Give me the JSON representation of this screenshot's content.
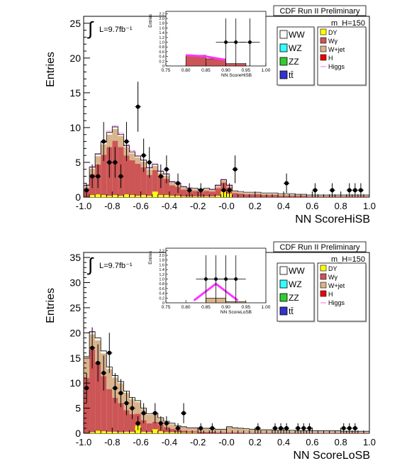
{
  "chart_data": [
    {
      "type": "bar",
      "title": "CDF Run II Preliminary",
      "mass_label": "m_H=150",
      "lumi": "L=9.7fb⁻¹",
      "xlabel": "NN ScoreHiSB",
      "ylabel": "Entries",
      "xlim": [
        -1.0,
        1.0
      ],
      "ylim": [
        0,
        26
      ],
      "xticks": [
        "-1.0",
        "-0.8",
        "-0.6",
        "-0.4",
        "-0.2",
        "-0.0",
        "0.2",
        "0.4",
        "0.6",
        "0.8",
        "1.0"
      ],
      "yticks": [
        "0",
        "5",
        "10",
        "15",
        "20",
        "25"
      ],
      "legend_left": [
        {
          "label": "WW",
          "color": "#ffffff"
        },
        {
          "label": "WZ",
          "color": "#33ffff"
        },
        {
          "label": "ZZ",
          "color": "#33cc33"
        },
        {
          "label": "tt̄",
          "color": "#3333cc"
        }
      ],
      "legend_right": [
        {
          "label": "DY",
          "color": "#ffff00"
        },
        {
          "label": "Wγ",
          "color": "#cc5555"
        },
        {
          "label": "W+jet",
          "color": "#d9b38c"
        },
        {
          "label": "H",
          "color": "#ee0000"
        },
        {
          "label": "Higgs",
          "color": "#ff66ff"
        }
      ],
      "bin_edges_start": -1.0,
      "bin_width": 0.04,
      "series": [
        {
          "name": "DY",
          "color": "#ffff00",
          "values": [
            0,
            0.3,
            0.4,
            0.3,
            0.2,
            0.3,
            0.2,
            0.4,
            0.3,
            0.2,
            0.3,
            0.2,
            0.8,
            0.3,
            0.3,
            0.2,
            0.2,
            0.1,
            0.1,
            0.1,
            0.1,
            0.1,
            0.1,
            0.2,
            0.8,
            0.5,
            0,
            0,
            0,
            0,
            0,
            0,
            0,
            0,
            0,
            0,
            0,
            0,
            0,
            0,
            0,
            0,
            0,
            0,
            0,
            0,
            0,
            0,
            0,
            0
          ]
        },
        {
          "name": "Wγ",
          "color": "#cc5555",
          "values": [
            1.3,
            3.0,
            4.3,
            5.8,
            7.0,
            7.8,
            7.0,
            5.6,
            5.0,
            4.6,
            4.0,
            3.0,
            3.1,
            2.7,
            2.3,
            1.5,
            1.3,
            1.0,
            0.8,
            0.8,
            0.7,
            0.8,
            0.7,
            1.1,
            1.3,
            0.9,
            0.6,
            0.5,
            0.4,
            0.4,
            0.4,
            0.3,
            0.3,
            0.3,
            0.2,
            0.2,
            0.2,
            0.2,
            0.2,
            0.1,
            0.1,
            0.1,
            0.1,
            0.1,
            0.1,
            0.1,
            0.1,
            0.1,
            0.1,
            0.1
          ]
        },
        {
          "name": "W+jet",
          "color": "#d9b38c",
          "values": [
            0.3,
            0.8,
            1.2,
            1.5,
            1.8,
            1.7,
            1.6,
            1.2,
            1.0,
            0.9,
            0.8,
            0.8,
            0.6,
            0.5,
            0.5,
            0.4,
            0.4,
            0.3,
            0.3,
            0.3,
            0.2,
            0.3,
            0.2,
            0.3,
            0.3,
            0.2,
            0.2,
            0.2,
            0.2,
            0.2,
            0.2,
            0.2,
            0.2,
            0.2,
            0.2,
            0.2,
            0.2,
            0.1,
            0.1,
            0.1,
            0.1,
            0.1,
            0.1,
            0.1,
            0.1,
            0.1,
            0.1,
            0.1,
            0.1,
            0.1
          ]
        },
        {
          "name": "WW",
          "color": "#ffffff",
          "values": [
            0.1,
            0.2,
            0.3,
            0.3,
            0.3,
            0.3,
            0.2,
            0.2,
            0.2,
            0.2,
            0.2,
            0.2,
            0.2,
            0.2,
            0.2,
            0.1,
            0.1,
            0.1,
            0.1,
            0.1,
            0.1,
            0.1,
            0.1,
            0.1,
            0.1,
            0.1,
            0.1,
            0.1,
            0.1,
            0.1,
            0.1,
            0.1,
            0.1,
            0.1,
            0.1,
            0.1,
            0.1,
            0.1,
            0.1,
            0.1,
            0.1,
            0.1,
            0.1,
            0.1,
            0.1,
            0.1,
            0.1,
            0.1,
            0.1,
            0.1
          ]
        }
      ],
      "higgs_total": [
        1.8,
        4.4,
        6.3,
        8.1,
        9.5,
        10.3,
        9.2,
        7.6,
        6.7,
        6.0,
        5.4,
        4.3,
        4.8,
        3.8,
        3.4,
        2.3,
        2.1,
        1.6,
        1.4,
        1.3,
        1.2,
        1.3,
        1.2,
        1.8,
        2.6,
        1.8,
        0.9,
        0.8,
        0.7,
        0.7,
        0.7,
        0.6,
        0.6,
        0.6,
        0.5,
        0.5,
        0.5,
        0.4,
        0.4,
        0.3,
        0.3,
        0.3,
        0.3,
        0.3,
        0.3,
        0.3,
        0.3,
        0.3,
        0.3,
        0.3
      ],
      "data_points": [
        {
          "x": -0.98,
          "y": 1,
          "err": 1
        },
        {
          "x": -0.94,
          "y": 3,
          "err": 1.7
        },
        {
          "x": -0.9,
          "y": 3,
          "err": 1.7
        },
        {
          "x": -0.86,
          "y": 8,
          "err": 2.8
        },
        {
          "x": -0.82,
          "y": 5,
          "err": 2.2
        },
        {
          "x": -0.78,
          "y": 5,
          "err": 2.2
        },
        {
          "x": -0.74,
          "y": 3,
          "err": 1.7
        },
        {
          "x": -0.7,
          "y": 8,
          "err": 2.8
        },
        {
          "x": -0.62,
          "y": 13,
          "err": 3.6
        },
        {
          "x": -0.58,
          "y": 6,
          "err": 2.4
        },
        {
          "x": -0.54,
          "y": 5,
          "err": 2.2
        },
        {
          "x": -0.46,
          "y": 3,
          "err": 1.7
        },
        {
          "x": -0.42,
          "y": 4,
          "err": 2
        },
        {
          "x": -0.34,
          "y": 2,
          "err": 1.4
        },
        {
          "x": -0.26,
          "y": 1,
          "err": 1
        },
        {
          "x": -0.18,
          "y": 1,
          "err": 1
        },
        {
          "x": -0.02,
          "y": 1,
          "err": 1
        },
        {
          "x": 0.02,
          "y": 1,
          "err": 1
        },
        {
          "x": 0.06,
          "y": 4,
          "err": 2
        },
        {
          "x": 0.42,
          "y": 2,
          "err": 1.4
        },
        {
          "x": 0.62,
          "y": 1,
          "err": 1
        },
        {
          "x": 0.74,
          "y": 1,
          "err": 1
        },
        {
          "x": 0.86,
          "y": 1,
          "err": 1
        },
        {
          "x": 0.9,
          "y": 1,
          "err": 1
        },
        {
          "x": 0.94,
          "y": 1,
          "err": 1
        }
      ],
      "inset": {
        "xlabel": "NN ScoreHiSB",
        "ylabel": "Entries",
        "xlim": [
          0.75,
          1.0
        ],
        "ylim": [
          0,
          2.3
        ],
        "xticks": [
          "0.75",
          "0.80",
          "0.85",
          "0.90",
          "0.95",
          "1.00"
        ],
        "yticks": [
          "0",
          "0.2",
          "0.4",
          "0.6",
          "0.8",
          "1.0",
          "1.2",
          "1.4",
          "1.6",
          "1.8",
          "2.0",
          "2.2"
        ],
        "bins": [
          {
            "x0": 0.8,
            "x1": 0.85,
            "val": 0.45,
            "color": "#cc5555"
          },
          {
            "x0": 0.85,
            "x1": 0.9,
            "val": 0.3,
            "color": "#cc5555"
          },
          {
            "x0": 0.9,
            "x1": 0.95,
            "val": 0.1,
            "color": "#cc5555"
          }
        ],
        "higgs": [
          {
            "x": 0.8,
            "y": 0.45
          },
          {
            "x": 0.85,
            "y": 0.4
          },
          {
            "x": 0.9,
            "y": 0.25
          }
        ],
        "data_points": [
          {
            "x": 0.9,
            "y": 1,
            "err": 1
          },
          {
            "x": 0.925,
            "y": 1,
            "err": 1
          },
          {
            "x": 0.96,
            "y": 1,
            "err": 1
          }
        ]
      }
    },
    {
      "type": "bar",
      "title": "CDF Run II Preliminary",
      "mass_label": "m_H=150",
      "lumi": "L=9.7fb⁻¹",
      "xlabel": "NN ScoreLoSB",
      "ylabel": "Entries",
      "xlim": [
        -1.0,
        1.0
      ],
      "ylim": [
        0,
        36
      ],
      "xticks": [
        "-1.0",
        "-0.8",
        "-0.6",
        "-0.4",
        "-0.2",
        "-0.0",
        "0.2",
        "0.4",
        "0.6",
        "0.8",
        "1.0"
      ],
      "yticks": [
        "0",
        "5",
        "10",
        "15",
        "20",
        "25",
        "30",
        "35"
      ],
      "legend_left": [
        {
          "label": "WW",
          "color": "#ffffff"
        },
        {
          "label": "WZ",
          "color": "#33ffff"
        },
        {
          "label": "ZZ",
          "color": "#33cc33"
        },
        {
          "label": "tt̄",
          "color": "#3333cc"
        }
      ],
      "legend_right": [
        {
          "label": "DY",
          "color": "#ffff00"
        },
        {
          "label": "Wγ",
          "color": "#cc5555"
        },
        {
          "label": "W+jet",
          "color": "#d9b38c"
        },
        {
          "label": "H",
          "color": "#ee0000"
        },
        {
          "label": "Higgs",
          "color": "#ff66ff"
        }
      ],
      "bin_edges_start": -1.0,
      "bin_width": 0.04,
      "series": [
        {
          "name": "DY",
          "color": "#ffff00",
          "values": [
            0,
            0.2,
            0.5,
            0.4,
            0.3,
            0.3,
            0.2,
            0.3,
            0.3,
            1.5,
            0.3,
            0.2,
            0.8,
            0.4,
            0.2,
            0.2,
            0.2,
            0.1,
            0.1,
            0.1,
            0,
            0,
            0,
            0,
            0,
            0,
            0,
            0,
            0,
            0,
            0,
            0,
            0,
            0,
            0,
            0,
            0,
            0,
            0,
            0,
            0,
            0,
            0,
            0,
            0,
            0,
            0,
            0,
            0,
            0
          ]
        },
        {
          "name": "Wγ",
          "color": "#cc5555",
          "values": [
            11.0,
            16.5,
            13.5,
            11.0,
            8.5,
            6.8,
            5.8,
            4.3,
            3.5,
            2.4,
            2.3,
            1.8,
            1.5,
            1.3,
            1.0,
            0.7,
            0.5,
            0.4,
            0.3,
            0.3,
            0.3,
            0.3,
            0.3,
            0.2,
            0.2,
            0.2,
            0.2,
            0.2,
            0.1,
            0.1,
            0.1,
            0.1,
            0.1,
            0.1,
            0.1,
            0.1,
            0.1,
            0.1,
            0.1,
            0.1,
            0.1,
            0.1,
            0.1,
            0.1,
            0.1,
            0.1,
            0.1,
            0.1,
            0.1,
            0.1
          ]
        },
        {
          "name": "W+jet",
          "color": "#d9b38c",
          "values": [
            4.0,
            3.0,
            4.5,
            4.5,
            4.0,
            4.0,
            4.0,
            3.5,
            3.0,
            2.3,
            2.2,
            1.7,
            1.5,
            1.2,
            1.0,
            0.9,
            0.7,
            0.7,
            0.6,
            0.6,
            0.6,
            0.6,
            0.5,
            0.5,
            0.5,
            1.0,
            0.8,
            0.7,
            0.7,
            0.6,
            0.5,
            0.5,
            0.5,
            0.4,
            0.4,
            0.4,
            0.4,
            0.3,
            0.3,
            0.3,
            0.3,
            0.3,
            0.3,
            0.3,
            0.3,
            0.2,
            0.2,
            0.2,
            0.2,
            0.2
          ]
        },
        {
          "name": "WW",
          "color": "#ffffff",
          "values": [
            0.3,
            0.5,
            0.5,
            0.5,
            0.4,
            0.4,
            0.3,
            0.3,
            0.3,
            0.3,
            0.2,
            0.2,
            0.2,
            0.2,
            0.2,
            0.2,
            0.1,
            0.1,
            0.1,
            0.1,
            0.1,
            0.1,
            0.1,
            0.1,
            0.1,
            0.1,
            0.1,
            0.1,
            0.1,
            0.1,
            0.1,
            0.1,
            0.1,
            0.1,
            0.1,
            0.1,
            0.1,
            0.1,
            0.1,
            0.1,
            0.1,
            0.1,
            0.1,
            0.1,
            0.1,
            0.1,
            0.1,
            0.1,
            0.1,
            0.1
          ]
        }
      ],
      "higgs_total": [
        15.3,
        20.3,
        19.0,
        16.4,
        13.2,
        11.5,
        10.3,
        8.4,
        7.1,
        6.5,
        5.0,
        3.9,
        4.0,
        3.1,
        2.4,
        2.0,
        1.5,
        1.3,
        1.1,
        1.1,
        1.0,
        1.0,
        0.9,
        0.8,
        0.8,
        1.3,
        1.1,
        1.0,
        0.9,
        0.8,
        0.7,
        0.7,
        0.7,
        0.6,
        0.6,
        0.6,
        0.6,
        0.5,
        0.5,
        0.5,
        0.5,
        0.5,
        0.5,
        0.5,
        0.5,
        0.4,
        0.4,
        0.4,
        0.4,
        0.4
      ],
      "data_points": [
        {
          "x": -0.98,
          "y": 9,
          "err": 3
        },
        {
          "x": -0.94,
          "y": 17,
          "err": 4.1
        },
        {
          "x": -0.9,
          "y": 14,
          "err": 3.7
        },
        {
          "x": -0.86,
          "y": 12,
          "err": 3.5
        },
        {
          "x": -0.82,
          "y": 16,
          "err": 4
        },
        {
          "x": -0.78,
          "y": 9,
          "err": 3
        },
        {
          "x": -0.74,
          "y": 8,
          "err": 2.8
        },
        {
          "x": -0.7,
          "y": 6,
          "err": 2.4
        },
        {
          "x": -0.66,
          "y": 5,
          "err": 2.2
        },
        {
          "x": -0.62,
          "y": 2,
          "err": 1.4
        },
        {
          "x": -0.58,
          "y": 4,
          "err": 2
        },
        {
          "x": -0.5,
          "y": 4,
          "err": 2
        },
        {
          "x": -0.46,
          "y": 2,
          "err": 1.4
        },
        {
          "x": -0.42,
          "y": 2,
          "err": 1.4
        },
        {
          "x": -0.34,
          "y": 1,
          "err": 1
        },
        {
          "x": -0.3,
          "y": 4,
          "err": 2
        },
        {
          "x": -0.18,
          "y": 1,
          "err": 1
        },
        {
          "x": -0.1,
          "y": 1,
          "err": 1
        },
        {
          "x": 0.22,
          "y": 1,
          "err": 1
        },
        {
          "x": 0.34,
          "y": 1,
          "err": 1
        },
        {
          "x": 0.38,
          "y": 1,
          "err": 1
        },
        {
          "x": 0.42,
          "y": 1,
          "err": 1
        },
        {
          "x": 0.5,
          "y": 1,
          "err": 1
        },
        {
          "x": 0.54,
          "y": 1,
          "err": 1
        },
        {
          "x": 0.58,
          "y": 1,
          "err": 1
        },
        {
          "x": 0.82,
          "y": 1,
          "err": 1
        },
        {
          "x": 0.86,
          "y": 1,
          "err": 1
        },
        {
          "x": 0.9,
          "y": 1,
          "err": 1
        }
      ],
      "inset": {
        "xlabel": "NN ScoreLoSB",
        "ylabel": "Entries",
        "xlim": [
          0.75,
          1.0
        ],
        "ylim": [
          0,
          2.3
        ],
        "xticks": [
          "0.75",
          "0.80",
          "0.85",
          "0.90",
          "0.95",
          "1.00"
        ],
        "yticks": [
          "0",
          "0.2",
          "0.4",
          "0.6",
          "0.8",
          "1.0",
          "1.2",
          "1.4",
          "1.6",
          "1.8",
          "2.0",
          "2.2"
        ],
        "bins": [
          {
            "x0": 0.85,
            "x1": 0.9,
            "val": 0.2,
            "color": "#d9b38c"
          },
          {
            "x0": 0.9,
            "x1": 0.95,
            "val": 0.05,
            "color": "#d9b38c"
          }
        ],
        "higgs": [
          {
            "x": 0.82,
            "y": 0.1
          },
          {
            "x": 0.875,
            "y": 0.8
          },
          {
            "x": 0.93,
            "y": 0.1
          }
        ],
        "data_points": [
          {
            "x": 0.85,
            "y": 1,
            "err": 1
          },
          {
            "x": 0.875,
            "y": 1,
            "err": 1
          },
          {
            "x": 0.9,
            "y": 1,
            "err": 1
          },
          {
            "x": 0.925,
            "y": 1,
            "err": 1
          }
        ]
      }
    }
  ]
}
